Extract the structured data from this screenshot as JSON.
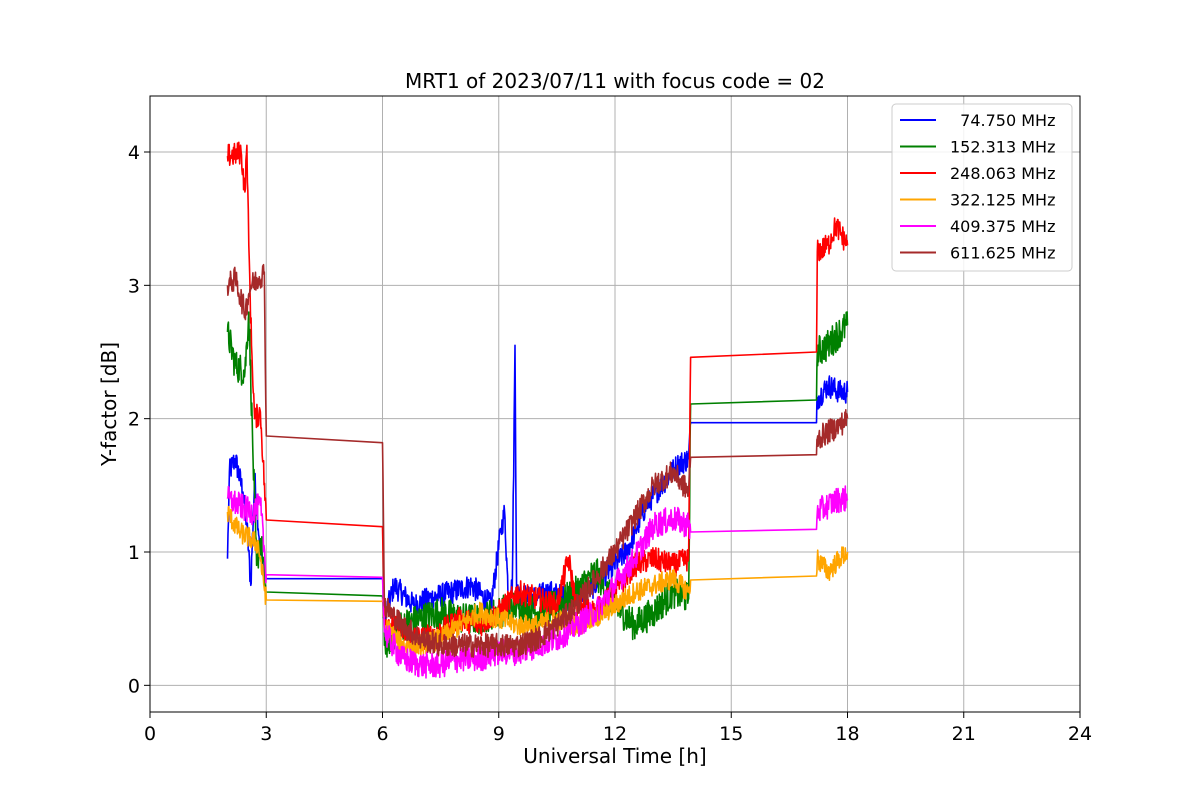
{
  "chart_data": {
    "type": "line",
    "title": "MRT1 of 2023/07/11 with focus code = 02",
    "xlabel": "Universal Time [h]",
    "ylabel": "Y-factor [dB]",
    "xlim": [
      0,
      24
    ],
    "ylim": [
      -0.2,
      4.42
    ],
    "x_ticks": [
      0,
      3,
      6,
      9,
      12,
      15,
      18,
      21,
      24
    ],
    "x_tick_labels": [
      "0",
      "3",
      "6",
      "9",
      "12",
      "15",
      "18",
      "21",
      "24"
    ],
    "y_ticks": [
      0,
      1,
      2,
      3,
      4
    ],
    "y_tick_labels": [
      "0",
      "1",
      "2",
      "3",
      "4"
    ],
    "grid": true,
    "legend_position": "top-right",
    "series": [
      {
        "name": "  74.750 MHz",
        "color": "#0000ff",
        "points": [
          [
            2.0,
            0.95
          ],
          [
            2.05,
            1.6
          ],
          [
            2.2,
            1.7
          ],
          [
            2.4,
            1.45
          ],
          [
            2.5,
            1.2
          ],
          [
            2.6,
            0.75
          ],
          [
            2.7,
            1.55
          ],
          [
            2.85,
            1.0
          ],
          [
            3.0,
            0.8
          ],
          [
            6.0,
            0.8
          ],
          [
            6.05,
            0.5
          ],
          [
            6.3,
            0.75
          ],
          [
            6.8,
            0.6
          ],
          [
            7.2,
            0.65
          ],
          [
            7.8,
            0.7
          ],
          [
            8.3,
            0.75
          ],
          [
            8.8,
            0.6
          ],
          [
            9.05,
            1.15
          ],
          [
            9.15,
            1.3
          ],
          [
            9.25,
            0.65
          ],
          [
            9.35,
            0.75
          ],
          [
            9.42,
            2.55
          ],
          [
            9.46,
            0.7
          ],
          [
            9.8,
            0.65
          ],
          [
            10.3,
            0.7
          ],
          [
            10.8,
            0.65
          ],
          [
            11.3,
            0.7
          ],
          [
            11.8,
            0.85
          ],
          [
            12.3,
            1.0
          ],
          [
            12.8,
            1.35
          ],
          [
            13.2,
            1.5
          ],
          [
            13.6,
            1.65
          ],
          [
            13.9,
            1.7
          ],
          [
            13.95,
            1.97
          ],
          [
            17.2,
            1.97
          ],
          [
            17.22,
            2.15
          ],
          [
            17.5,
            2.25
          ],
          [
            17.8,
            2.2
          ],
          [
            18.0,
            2.2
          ]
        ],
        "noise": 0.09
      },
      {
        "name": "152.313 MHz",
        "color": "#008000",
        "points": [
          [
            2.0,
            2.65
          ],
          [
            2.2,
            2.4
          ],
          [
            2.45,
            2.35
          ],
          [
            2.55,
            2.8
          ],
          [
            2.65,
            1.8
          ],
          [
            2.75,
            0.9
          ],
          [
            2.85,
            1.1
          ],
          [
            3.0,
            0.7
          ],
          [
            6.0,
            0.67
          ],
          [
            6.05,
            0.3
          ],
          [
            6.5,
            0.45
          ],
          [
            7.0,
            0.5
          ],
          [
            7.5,
            0.55
          ],
          [
            8.0,
            0.5
          ],
          [
            8.5,
            0.5
          ],
          [
            9.0,
            0.55
          ],
          [
            9.5,
            0.6
          ],
          [
            10.0,
            0.55
          ],
          [
            10.5,
            0.6
          ],
          [
            11.0,
            0.7
          ],
          [
            11.5,
            0.85
          ],
          [
            12.0,
            0.6
          ],
          [
            12.5,
            0.45
          ],
          [
            13.0,
            0.55
          ],
          [
            13.5,
            0.7
          ],
          [
            13.9,
            0.65
          ],
          [
            13.95,
            2.11
          ],
          [
            17.2,
            2.14
          ],
          [
            17.22,
            2.5
          ],
          [
            17.5,
            2.55
          ],
          [
            17.8,
            2.65
          ],
          [
            18.0,
            2.7
          ]
        ],
        "noise": 0.12
      },
      {
        "name": "248.063 MHz",
        "color": "#ff0000",
        "points": [
          [
            2.0,
            3.97
          ],
          [
            2.2,
            3.98
          ],
          [
            2.35,
            4.0
          ],
          [
            2.45,
            3.7
          ],
          [
            2.5,
            4.05
          ],
          [
            2.55,
            3.3
          ],
          [
            2.62,
            2.55
          ],
          [
            2.7,
            2.0
          ],
          [
            2.85,
            2.05
          ],
          [
            3.0,
            1.24
          ],
          [
            6.0,
            1.19
          ],
          [
            6.05,
            0.5
          ],
          [
            6.5,
            0.4
          ],
          [
            7.0,
            0.35
          ],
          [
            7.5,
            0.4
          ],
          [
            8.0,
            0.5
          ],
          [
            8.5,
            0.45
          ],
          [
            9.0,
            0.55
          ],
          [
            9.5,
            0.7
          ],
          [
            10.0,
            0.65
          ],
          [
            10.5,
            0.6
          ],
          [
            10.8,
            0.95
          ],
          [
            11.0,
            0.6
          ],
          [
            11.5,
            0.55
          ],
          [
            12.0,
            0.7
          ],
          [
            12.5,
            0.9
          ],
          [
            13.0,
            0.95
          ],
          [
            13.5,
            0.9
          ],
          [
            13.9,
            0.95
          ],
          [
            13.95,
            2.46
          ],
          [
            17.2,
            2.5
          ],
          [
            17.22,
            3.25
          ],
          [
            17.5,
            3.3
          ],
          [
            17.7,
            3.45
          ],
          [
            18.0,
            3.3
          ]
        ],
        "noise": 0.09
      },
      {
        "name": "322.125 MHz",
        "color": "#ffa500",
        "points": [
          [
            2.0,
            1.3
          ],
          [
            2.3,
            1.15
          ],
          [
            2.6,
            1.1
          ],
          [
            2.8,
            1.05
          ],
          [
            3.0,
            0.64
          ],
          [
            6.0,
            0.63
          ],
          [
            6.05,
            0.45
          ],
          [
            6.5,
            0.3
          ],
          [
            7.0,
            0.3
          ],
          [
            7.5,
            0.35
          ],
          [
            8.0,
            0.45
          ],
          [
            8.5,
            0.55
          ],
          [
            9.0,
            0.5
          ],
          [
            9.5,
            0.45
          ],
          [
            10.0,
            0.45
          ],
          [
            10.5,
            0.5
          ],
          [
            11.0,
            0.45
          ],
          [
            11.5,
            0.5
          ],
          [
            12.0,
            0.6
          ],
          [
            12.5,
            0.7
          ],
          [
            13.0,
            0.75
          ],
          [
            13.5,
            0.8
          ],
          [
            13.9,
            0.7
          ],
          [
            13.95,
            0.79
          ],
          [
            17.2,
            0.82
          ],
          [
            17.22,
            0.95
          ],
          [
            17.5,
            0.85
          ],
          [
            17.8,
            0.95
          ],
          [
            18.0,
            1.0
          ]
        ],
        "noise": 0.08
      },
      {
        "name": "409.375 MHz",
        "color": "#ff00ff",
        "points": [
          [
            2.0,
            1.4
          ],
          [
            2.3,
            1.35
          ],
          [
            2.6,
            1.3
          ],
          [
            2.85,
            1.35
          ],
          [
            3.0,
            0.83
          ],
          [
            6.0,
            0.81
          ],
          [
            6.05,
            0.4
          ],
          [
            6.5,
            0.2
          ],
          [
            7.0,
            0.15
          ],
          [
            7.5,
            0.15
          ],
          [
            8.0,
            0.2
          ],
          [
            8.5,
            0.2
          ],
          [
            9.0,
            0.25
          ],
          [
            9.5,
            0.25
          ],
          [
            10.0,
            0.3
          ],
          [
            10.5,
            0.35
          ],
          [
            11.0,
            0.45
          ],
          [
            11.5,
            0.55
          ],
          [
            12.0,
            0.75
          ],
          [
            12.5,
            0.95
          ],
          [
            13.0,
            1.2
          ],
          [
            13.5,
            1.25
          ],
          [
            13.9,
            1.2
          ],
          [
            13.95,
            1.15
          ],
          [
            17.2,
            1.17
          ],
          [
            17.22,
            1.3
          ],
          [
            17.5,
            1.35
          ],
          [
            17.8,
            1.4
          ],
          [
            18.0,
            1.4
          ]
        ],
        "noise": 0.1
      },
      {
        "name": "611.625 MHz",
        "color": "#a52a2a",
        "points": [
          [
            2.0,
            3.0
          ],
          [
            2.2,
            3.05
          ],
          [
            2.45,
            2.8
          ],
          [
            2.6,
            3.0
          ],
          [
            2.8,
            3.05
          ],
          [
            2.95,
            3.1
          ],
          [
            3.0,
            1.87
          ],
          [
            6.0,
            1.82
          ],
          [
            6.05,
            0.6
          ],
          [
            6.5,
            0.45
          ],
          [
            7.0,
            0.35
          ],
          [
            7.5,
            0.3
          ],
          [
            8.0,
            0.3
          ],
          [
            8.5,
            0.3
          ],
          [
            9.0,
            0.3
          ],
          [
            9.5,
            0.3
          ],
          [
            10.0,
            0.35
          ],
          [
            10.5,
            0.45
          ],
          [
            11.0,
            0.6
          ],
          [
            11.5,
            0.8
          ],
          [
            12.0,
            1.0
          ],
          [
            12.5,
            1.25
          ],
          [
            13.0,
            1.5
          ],
          [
            13.5,
            1.6
          ],
          [
            13.9,
            1.45
          ],
          [
            13.95,
            1.71
          ],
          [
            17.2,
            1.73
          ],
          [
            17.22,
            1.85
          ],
          [
            17.5,
            1.9
          ],
          [
            17.8,
            1.95
          ],
          [
            18.0,
            2.0
          ]
        ],
        "noise": 0.09
      }
    ]
  }
}
